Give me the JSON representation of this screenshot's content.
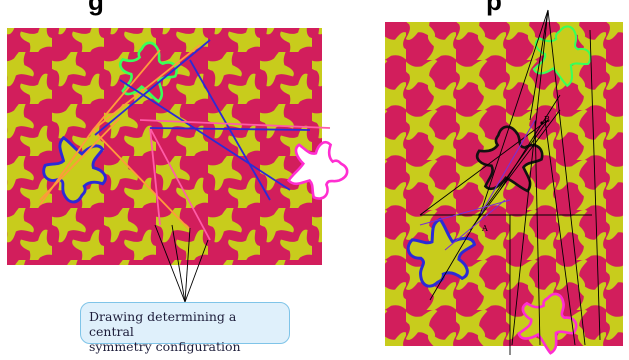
{
  "header": {
    "left_fragment": "g",
    "right_fragment": "p"
  },
  "callout": {
    "line1": "Drawing determining a central",
    "line2": "symmetry configuration"
  },
  "right_panel": {
    "point_a": "A",
    "point_b": "B"
  },
  "colors": {
    "crimson": "#d21e5c",
    "olive": "#c8cc1c",
    "outline_green": "#39ff5a",
    "outline_blue": "#2b2bd6",
    "outline_magenta": "#ff2ed1",
    "line_orange": "#ff9a3c",
    "line_pink": "#ff5ca8",
    "callout_fill": "#dff0fb",
    "callout_border": "#7fc4e8"
  }
}
